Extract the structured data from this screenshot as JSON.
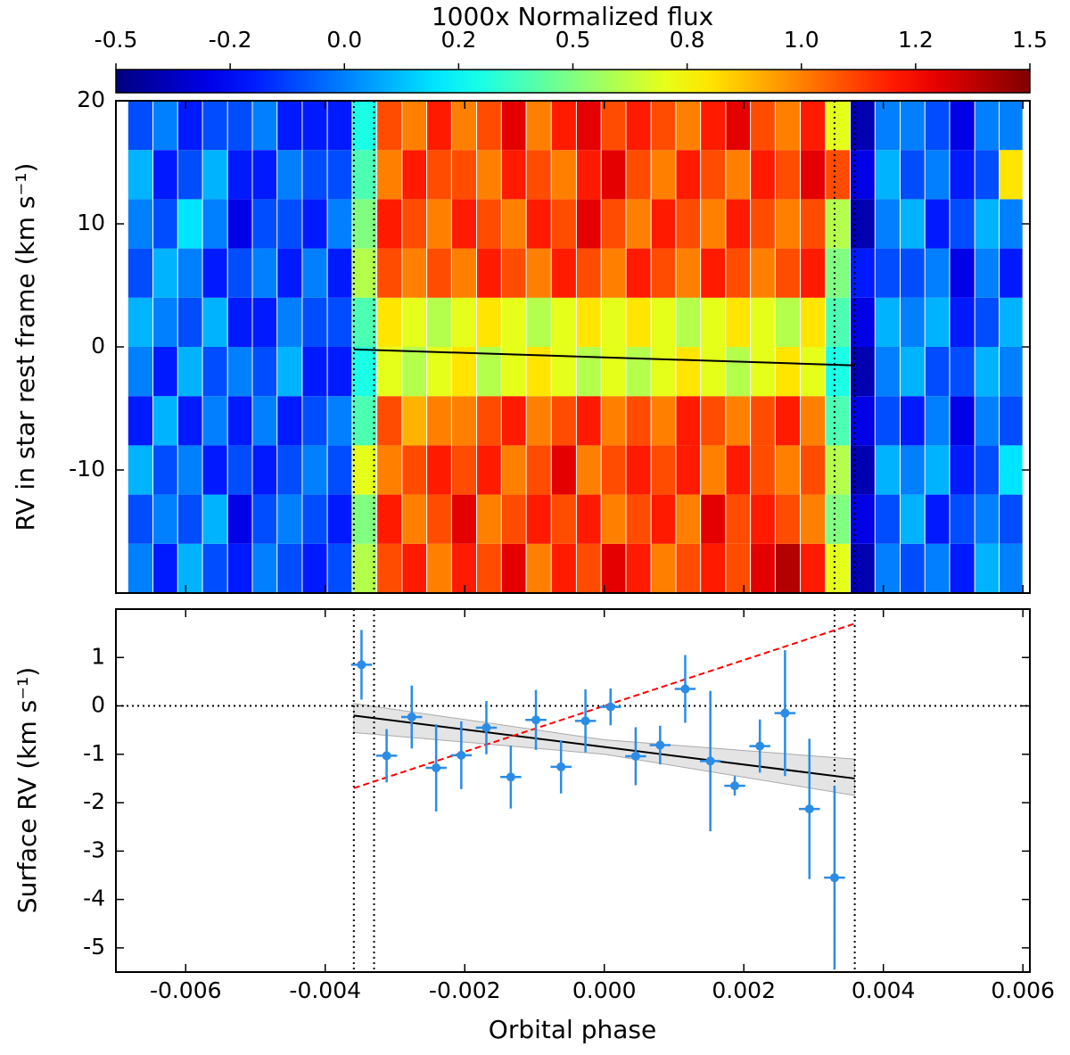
{
  "chart_data": [
    {
      "type": "heatmap",
      "colorbar_label": "1000x Normalized flux",
      "colormap": "jet",
      "zlim": [
        -0.5,
        1.5
      ],
      "zticks": [
        -0.5,
        {
          "value": -0.25,
          "label": "-0.2"
        },
        {
          "value": 0,
          "label": "0.0"
        },
        {
          "value": 0.25,
          "label": "0.2"
        },
        0.5,
        {
          "value": 0.75,
          "label": "0.8"
        },
        {
          "value": 1,
          "label": "1.0"
        },
        {
          "value": 1.25,
          "label": "1.2"
        },
        1.5
      ],
      "ylabel": "RV in star rest frame (km s⁻¹)",
      "xlim": [
        -0.007,
        0.0061
      ],
      "xticks": [
        -0.006,
        -0.004,
        -0.002,
        0,
        0.002,
        0.004,
        0.006
      ],
      "ylim": [
        -20,
        20
      ],
      "yticks": [
        20,
        10,
        0,
        -10
      ],
      "x": [
        -0.00665,
        -0.00629,
        -0.00594,
        -0.00558,
        -0.00522,
        -0.00487,
        -0.00451,
        -0.00415,
        -0.00379,
        -0.00344,
        -0.00308,
        -0.00272,
        -0.00237,
        -0.00201,
        -0.00165,
        -0.0013,
        -0.00094,
        -0.00058,
        -0.00022,
        0.00013,
        0.00049,
        0.00085,
        0.0012,
        0.00156,
        0.00192,
        0.00227,
        0.00263,
        0.00299,
        0.00335,
        0.0037,
        0.00406,
        0.00442,
        0.00477,
        0.00513,
        0.00549,
        0.00583
      ],
      "y": [
        -18,
        -14,
        -10,
        -6,
        -2,
        2,
        6,
        10,
        14,
        18
      ],
      "z": [
        [
          0.0,
          -0.1,
          0.1,
          -0.2,
          0.0,
          0.1,
          -0.1,
          0.0,
          0.1,
          -0.1
        ],
        [
          -0.2,
          0.0,
          -0.1,
          0.1,
          -0.2,
          0.0,
          0.1,
          -0.1,
          -0.2,
          0.0
        ],
        [
          0.1,
          -0.1,
          0.0,
          -0.2,
          0.1,
          -0.1,
          0.0,
          0.2,
          -0.1,
          -0.2
        ],
        [
          -0.1,
          0.1,
          -0.2,
          0.0,
          -0.1,
          0.1,
          -0.2,
          0.0,
          0.1,
          -0.1
        ],
        [
          -0.2,
          -0.3,
          -0.1,
          -0.2,
          0.0,
          -0.2,
          -0.1,
          -0.3,
          -0.2,
          -0.1
        ],
        [
          0.0,
          -0.1,
          -0.2,
          0.0,
          -0.1,
          -0.2,
          0.0,
          -0.1,
          -0.2,
          0.0
        ],
        [
          -0.1,
          0.0,
          -0.1,
          -0.2,
          0.1,
          0.0,
          -0.2,
          -0.1,
          0.0,
          -0.2
        ],
        [
          -0.2,
          -0.1,
          0.0,
          -0.1,
          -0.2,
          -0.1,
          0.0,
          -0.2,
          -0.1,
          -0.2
        ],
        [
          -0.1,
          -0.2,
          -0.1,
          0.0,
          -0.2,
          -0.1,
          -0.2,
          0.0,
          -0.1,
          -0.2
        ],
        [
          0.6,
          0.5,
          0.7,
          0.4,
          0.3,
          0.4,
          0.6,
          0.5,
          0.4,
          0.3
        ],
        [
          1.1,
          1.2,
          1.0,
          1.1,
          0.7,
          0.8,
          1.1,
          1.2,
          1.0,
          1.1
        ],
        [
          1.2,
          1.0,
          1.1,
          0.9,
          0.6,
          0.7,
          1.0,
          1.1,
          1.2,
          1.0
        ],
        [
          1.0,
          1.1,
          1.2,
          1.0,
          0.7,
          0.6,
          1.1,
          1.0,
          1.1,
          1.2
        ],
        [
          1.2,
          1.3,
          1.1,
          1.0,
          0.8,
          0.7,
          1.0,
          1.2,
          1.1,
          1.0
        ],
        [
          1.1,
          1.0,
          1.2,
          1.1,
          0.6,
          0.8,
          1.2,
          1.1,
          1.0,
          1.1
        ],
        [
          1.3,
          1.1,
          1.0,
          1.2,
          0.7,
          0.7,
          1.1,
          1.0,
          1.2,
          1.3
        ],
        [
          1.0,
          1.2,
          1.1,
          1.0,
          0.8,
          0.6,
          1.0,
          1.2,
          1.1,
          1.0
        ],
        [
          1.2,
          1.1,
          1.3,
          1.1,
          0.7,
          0.7,
          1.2,
          1.1,
          1.0,
          1.2
        ],
        [
          1.1,
          1.2,
          1.0,
          1.2,
          0.6,
          0.8,
          1.1,
          1.3,
          1.2,
          1.3
        ],
        [
          1.3,
          1.0,
          1.1,
          1.0,
          0.7,
          0.7,
          1.0,
          1.1,
          1.3,
          1.1
        ],
        [
          1.2,
          1.1,
          1.2,
          1.1,
          0.6,
          0.8,
          1.2,
          1.0,
          1.1,
          1.2
        ],
        [
          1.0,
          1.2,
          1.1,
          1.0,
          0.7,
          0.7,
          1.1,
          1.2,
          1.0,
          1.1
        ],
        [
          1.1,
          1.0,
          1.2,
          1.2,
          0.8,
          0.6,
          1.0,
          1.1,
          1.2,
          1.0
        ],
        [
          1.2,
          1.3,
          1.0,
          1.1,
          0.7,
          0.7,
          1.2,
          1.0,
          1.1,
          1.2
        ],
        [
          1.1,
          1.1,
          1.2,
          1.0,
          0.6,
          0.8,
          1.1,
          1.2,
          1.0,
          1.3
        ],
        [
          1.3,
          1.2,
          1.1,
          1.1,
          0.7,
          0.7,
          1.0,
          1.1,
          1.2,
          1.1
        ],
        [
          1.4,
          1.1,
          1.0,
          1.2,
          0.8,
          0.6,
          1.1,
          1.0,
          1.1,
          1.0
        ],
        [
          1.2,
          1.0,
          1.1,
          1.0,
          0.7,
          0.8,
          1.2,
          1.1,
          1.3,
          1.2
        ],
        [
          0.7,
          0.5,
          0.6,
          0.4,
          0.3,
          0.4,
          0.5,
          0.6,
          1.1,
          0.7
        ],
        [
          -0.4,
          -0.3,
          -0.4,
          -0.3,
          -0.4,
          -0.3,
          -0.2,
          -0.4,
          -0.3,
          -0.4
        ],
        [
          0.0,
          -0.1,
          0.1,
          -0.1,
          0.0,
          0.1,
          -0.1,
          0.0,
          0.1,
          0.0
        ],
        [
          -0.1,
          0.1,
          0.0,
          -0.2,
          0.1,
          0.0,
          -0.1,
          0.1,
          -0.1,
          0.0
        ],
        [
          0.0,
          -0.2,
          0.1,
          0.0,
          -0.1,
          0.1,
          0.0,
          -0.2,
          0.0,
          -0.1
        ],
        [
          -0.2,
          -0.1,
          -0.2,
          -0.3,
          -0.1,
          -0.2,
          -0.3,
          -0.1,
          -0.2,
          -0.3
        ],
        [
          0.1,
          0.0,
          -0.1,
          0.0,
          0.1,
          -0.1,
          0.0,
          0.1,
          -0.1,
          0.0
        ],
        [
          0.0,
          -0.1,
          0.2,
          -0.1,
          0.0,
          0.1,
          -0.2,
          0.0,
          0.8,
          0.0
        ]
      ]
    },
    {
      "type": "errorbar",
      "xlabel": "Orbital phase",
      "ylabel": "Surface RV (km s⁻¹)",
      "xlim": [
        -0.007,
        0.0061
      ],
      "xticks": [
        -0.006,
        -0.004,
        -0.002,
        {
          "value": 0,
          "label": "0.000"
        },
        0.002,
        0.004,
        0.006
      ],
      "ylim": [
        -5.5,
        2
      ],
      "yticks": [
        1,
        0,
        -1,
        -2,
        -3,
        -4,
        -5
      ],
      "color": "#2b8ce6",
      "x": [
        -0.00348,
        -0.00312,
        -0.00276,
        -0.00241,
        -0.00205,
        -0.00169,
        -0.00134,
        -0.00098,
        -0.00062,
        -0.00027,
        9e-05,
        0.00045,
        0.0008,
        0.00116,
        0.00152,
        0.00187,
        0.00223,
        0.00259,
        0.00294,
        0.0033
      ],
      "y": [
        0.85,
        -1.03,
        -0.23,
        -1.28,
        -1.02,
        -0.45,
        -1.47,
        -0.29,
        -1.26,
        -0.31,
        -0.02,
        -1.04,
        -0.81,
        0.35,
        -1.14,
        -1.65,
        -0.83,
        -0.15,
        -2.13,
        -3.55
      ],
      "yerr": [
        0.72,
        0.55,
        0.65,
        0.9,
        0.7,
        0.55,
        0.65,
        0.62,
        0.55,
        0.65,
        0.38,
        0.6,
        0.4,
        0.7,
        1.45,
        0.2,
        0.55,
        1.3,
        1.45,
        1.9
      ],
      "xerr": 0.00015,
      "model": {
        "x": [
          -0.00359,
          0,
          0.00359
        ],
        "y": [
          -0.2,
          -0.85,
          -1.5
        ],
        "lower": [
          -0.55,
          -1.0,
          -1.85
        ],
        "upper": [
          0.05,
          -0.7,
          -1.1
        ],
        "color": "#000000",
        "band_color": "#d9d9d9"
      },
      "rm_model": {
        "x": [
          -0.00359,
          0.00359
        ],
        "y": [
          -1.7,
          1.7
        ],
        "color": "#ff0000"
      },
      "transit_lines": [
        -0.00359,
        -0.0033,
        0.0033,
        0.00359
      ],
      "hline": 0
    }
  ]
}
